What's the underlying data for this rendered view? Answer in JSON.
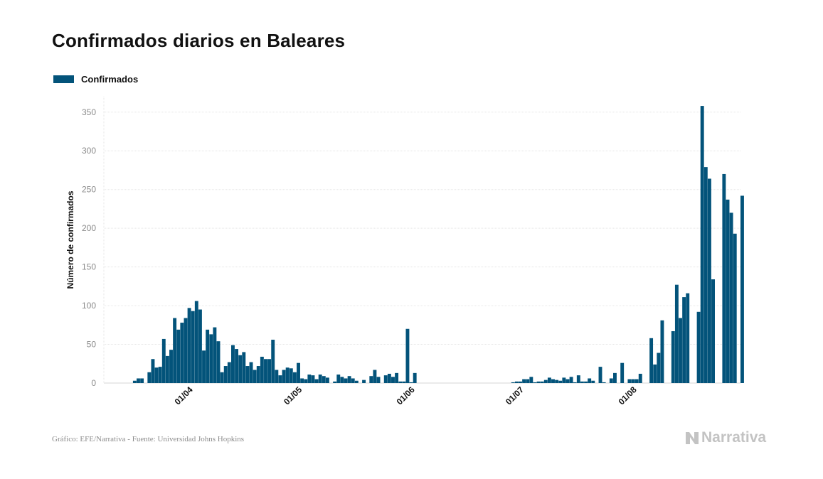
{
  "header": {
    "title": "Confirmados diarios en Baleares"
  },
  "colors": {
    "bar": "#03537a",
    "grid": "#e6e6e6",
    "tick": "#8a8a8a",
    "brand": "#c3c3c3"
  },
  "footer": {
    "source": "Gráfico: EFE/Narrativa - Fuente: Universidad Johns Hopkins",
    "brand": "Narrativa",
    "brand_icon": "narrativa-logo-icon"
  },
  "chart_data": {
    "type": "bar",
    "title": "Confirmados diarios en Baleares",
    "xlabel": "",
    "ylabel": "Número de confirmados",
    "legend": {
      "position": "top-left",
      "entries": [
        "Confirmados"
      ]
    },
    "grid": true,
    "ylim": [
      0,
      370
    ],
    "yticks": [
      0,
      50,
      100,
      150,
      200,
      250,
      300,
      350
    ],
    "xticks": [
      {
        "label": "01/04",
        "date": "2020-04-01"
      },
      {
        "label": "01/05",
        "date": "2020-05-01"
      },
      {
        "label": "01/06",
        "date": "2020-06-01"
      },
      {
        "label": "01/07",
        "date": "2020-07-01"
      },
      {
        "label": "01/08",
        "date": "2020-08-01"
      }
    ],
    "x_start": "2020-03-09",
    "x_end": "2020-08-31",
    "series": [
      {
        "name": "Confirmados",
        "dates": [
          "2020-03-17",
          "2020-03-18",
          "2020-03-19",
          "2020-03-20",
          "2020-03-21",
          "2020-03-22",
          "2020-03-23",
          "2020-03-24",
          "2020-03-25",
          "2020-03-26",
          "2020-03-27",
          "2020-03-28",
          "2020-03-29",
          "2020-03-30",
          "2020-03-31",
          "2020-04-01",
          "2020-04-02",
          "2020-04-03",
          "2020-04-04",
          "2020-04-05",
          "2020-04-06",
          "2020-04-07",
          "2020-04-08",
          "2020-04-09",
          "2020-04-10",
          "2020-04-11",
          "2020-04-12",
          "2020-04-13",
          "2020-04-14",
          "2020-04-15",
          "2020-04-16",
          "2020-04-17",
          "2020-04-18",
          "2020-04-19",
          "2020-04-20",
          "2020-04-21",
          "2020-04-22",
          "2020-04-23",
          "2020-04-24",
          "2020-04-25",
          "2020-04-26",
          "2020-04-27",
          "2020-04-28",
          "2020-04-29",
          "2020-04-30",
          "2020-05-01",
          "2020-05-02",
          "2020-05-03",
          "2020-05-04",
          "2020-05-05",
          "2020-05-06",
          "2020-05-07",
          "2020-05-08",
          "2020-05-09",
          "2020-05-10",
          "2020-05-11",
          "2020-05-12",
          "2020-05-13",
          "2020-05-14",
          "2020-05-15",
          "2020-05-16",
          "2020-05-17",
          "2020-05-18",
          "2020-05-19",
          "2020-05-20",
          "2020-05-21",
          "2020-05-22",
          "2020-05-23",
          "2020-05-24",
          "2020-05-25",
          "2020-05-26",
          "2020-05-27",
          "2020-05-28",
          "2020-05-29",
          "2020-05-30",
          "2020-05-31",
          "2020-06-01",
          "2020-06-02",
          "2020-06-29",
          "2020-06-30",
          "2020-07-01",
          "2020-07-02",
          "2020-07-03",
          "2020-07-04",
          "2020-07-05",
          "2020-07-06",
          "2020-07-07",
          "2020-07-08",
          "2020-07-09",
          "2020-07-10",
          "2020-07-11",
          "2020-07-12",
          "2020-07-13",
          "2020-07-14",
          "2020-07-15",
          "2020-07-16",
          "2020-07-17",
          "2020-07-18",
          "2020-07-19",
          "2020-07-20",
          "2020-07-21",
          "2020-07-22",
          "2020-07-23",
          "2020-07-24",
          "2020-07-25",
          "2020-07-26",
          "2020-07-27",
          "2020-07-28",
          "2020-07-29",
          "2020-07-30",
          "2020-07-31",
          "2020-08-01",
          "2020-08-02",
          "2020-08-03",
          "2020-08-04",
          "2020-08-05",
          "2020-08-06",
          "2020-08-07",
          "2020-08-08",
          "2020-08-09",
          "2020-08-10",
          "2020-08-11",
          "2020-08-12",
          "2020-08-13",
          "2020-08-14",
          "2020-08-15",
          "2020-08-16",
          "2020-08-17",
          "2020-08-18",
          "2020-08-19",
          "2020-08-20",
          "2020-08-21",
          "2020-08-22",
          "2020-08-23",
          "2020-08-24",
          "2020-08-25",
          "2020-08-26",
          "2020-08-27",
          "2020-08-28",
          "2020-08-29",
          "2020-08-30",
          "2020-08-31"
        ],
        "values": [
          3,
          6,
          6,
          0,
          14,
          31,
          20,
          21,
          57,
          35,
          43,
          84,
          69,
          78,
          84,
          97,
          93,
          106,
          95,
          42,
          69,
          63,
          72,
          54,
          14,
          22,
          27,
          49,
          44,
          36,
          40,
          22,
          27,
          17,
          22,
          34,
          31,
          31,
          56,
          17,
          10,
          17,
          20,
          19,
          14,
          26,
          6,
          5,
          11,
          10,
          5,
          11,
          9,
          7,
          0,
          2,
          11,
          8,
          6,
          9,
          6,
          3,
          0,
          4,
          0,
          9,
          17,
          8,
          0,
          10,
          12,
          8,
          13,
          2,
          2,
          70,
          1,
          13,
          1,
          2,
          2,
          5,
          5,
          8,
          1,
          2,
          2,
          4,
          7,
          5,
          4,
          3,
          7,
          5,
          8,
          1,
          10,
          2,
          2,
          6,
          3,
          0,
          21,
          1,
          0,
          6,
          13,
          0,
          26,
          0,
          5,
          5,
          5,
          12,
          0,
          0,
          58,
          24,
          39,
          81,
          0,
          0,
          67,
          127,
          84,
          111,
          116,
          0,
          0,
          92,
          358,
          279,
          264,
          134,
          0,
          0,
          270,
          237,
          220,
          193,
          0,
          242
        ]
      }
    ]
  }
}
